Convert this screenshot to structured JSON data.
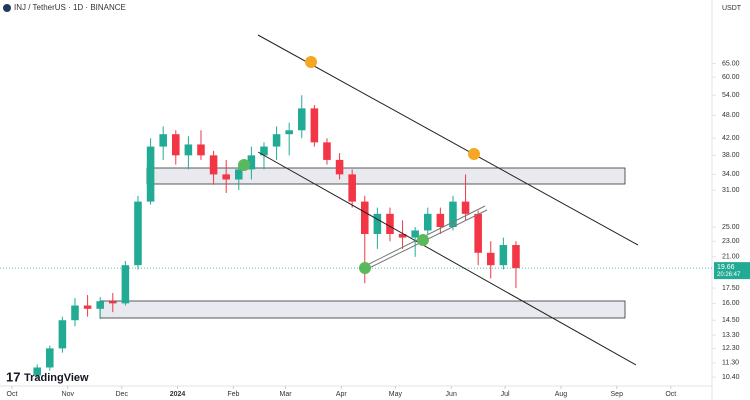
{
  "chart_data": {
    "type": "candlestick",
    "title": "INJ / TetherUS · 1D · BINANCE",
    "currency": "USDT",
    "last_price": 19.66,
    "countdown": "20:26:47",
    "brand": "TradingView",
    "log_scale": true,
    "up_color": "#22ab94",
    "down_color": "#f23645",
    "x": [
      2,
      3,
      4,
      5,
      6,
      7,
      8,
      9,
      10,
      11,
      12,
      13,
      14,
      15,
      16,
      17,
      18,
      19,
      20,
      21,
      22,
      23,
      24,
      25,
      26,
      27,
      28,
      29,
      30,
      31,
      32,
      33,
      34,
      35,
      36,
      37,
      38,
      39,
      40
    ],
    "open": [
      10.5,
      11.0,
      12.3,
      14.5,
      15.8,
      15.5,
      16.2,
      16.0,
      20.0,
      29.0,
      40.0,
      43.0,
      38.0,
      40.5,
      38.0,
      34.0,
      33.0,
      35.0,
      38.0,
      40.0,
      43.0,
      44.0,
      50.0,
      41.0,
      37.0,
      34.0,
      29.0,
      24.0,
      27.0,
      24.0,
      23.5,
      24.5,
      27.0,
      25.0,
      29.0,
      27.0,
      21.5,
      20.0,
      22.5
    ],
    "high": [
      11.2,
      12.5,
      14.8,
      16.5,
      16.8,
      16.6,
      17.0,
      20.5,
      30.0,
      42.0,
      45.0,
      44.0,
      42.5,
      44.0,
      39.0,
      37.0,
      36.0,
      40.0,
      41.0,
      45.0,
      46.0,
      54.0,
      51.0,
      42.0,
      38.5,
      35.0,
      30.0,
      28.0,
      28.0,
      26.0,
      25.0,
      28.0,
      28.0,
      30.0,
      34.0,
      27.5,
      23.0,
      23.5,
      23.0
    ],
    "low": [
      10.3,
      10.8,
      12.0,
      14.0,
      14.8,
      14.6,
      15.2,
      15.8,
      19.5,
      28.5,
      37.0,
      36.0,
      35.0,
      37.0,
      32.0,
      30.5,
      31.0,
      33.0,
      35.0,
      37.0,
      38.0,
      42.0,
      40.0,
      36.0,
      33.0,
      28.0,
      18.0,
      22.0,
      23.0,
      22.0,
      21.0,
      24.0,
      24.0,
      24.5,
      26.0,
      20.0,
      18.5,
      19.5,
      17.5
    ],
    "close": [
      11.0,
      12.3,
      14.5,
      15.8,
      15.5,
      16.2,
      16.0,
      20.0,
      29.0,
      40.0,
      43.0,
      38.0,
      40.5,
      38.0,
      34.0,
      33.0,
      35.0,
      38.0,
      40.0,
      43.0,
      44.0,
      50.0,
      41.0,
      37.0,
      34.0,
      29.0,
      24.0,
      27.0,
      24.0,
      23.5,
      24.5,
      27.0,
      25.0,
      29.0,
      27.0,
      21.5,
      20.0,
      22.5,
      19.66
    ],
    "xlim": [
      -0.952,
      55.56
    ],
    "xticks": [
      {
        "value": 0,
        "label": "Oct"
      },
      {
        "value": 4.43,
        "label": "Nov"
      },
      {
        "value": 8.71,
        "label": "Dec"
      },
      {
        "value": 13.14,
        "label": "2024"
      },
      {
        "value": 17.57,
        "label": "Feb"
      },
      {
        "value": 21.71,
        "label": "Mar"
      },
      {
        "value": 26.14,
        "label": "Apr"
      },
      {
        "value": 30.43,
        "label": "May"
      },
      {
        "value": 34.86,
        "label": "Jun"
      },
      {
        "value": 39.14,
        "label": "Jul"
      },
      {
        "value": 43.57,
        "label": "Aug"
      },
      {
        "value": 48,
        "label": "Sep"
      },
      {
        "value": 52.29,
        "label": "Oct"
      }
    ],
    "ylim": [
      9.93,
      94.2
    ],
    "yticks": [
      {
        "value": 65,
        "label": "65.00"
      },
      {
        "value": 60,
        "label": "60.00"
      },
      {
        "value": 54,
        "label": "54.00"
      },
      {
        "value": 48,
        "label": "48.00"
      },
      {
        "value": 42,
        "label": "42.00"
      },
      {
        "value": 38,
        "label": "38.00"
      },
      {
        "value": 34,
        "label": "34.00"
      },
      {
        "value": 31,
        "label": "31.00"
      },
      {
        "value": 25,
        "label": "25.00"
      },
      {
        "value": 23,
        "label": "23.00"
      },
      {
        "value": 21,
        "label": "21.00"
      },
      {
        "value": 17.5,
        "label": "17.50"
      },
      {
        "value": 16,
        "label": "16.00"
      },
      {
        "value": 14.5,
        "label": "14.50"
      },
      {
        "value": 13.3,
        "label": "13.30"
      },
      {
        "value": 12.3,
        "label": "12.30"
      },
      {
        "value": 11.3,
        "label": "11.30"
      },
      {
        "value": 10.4,
        "label": "10.40"
      }
    ]
  }
}
